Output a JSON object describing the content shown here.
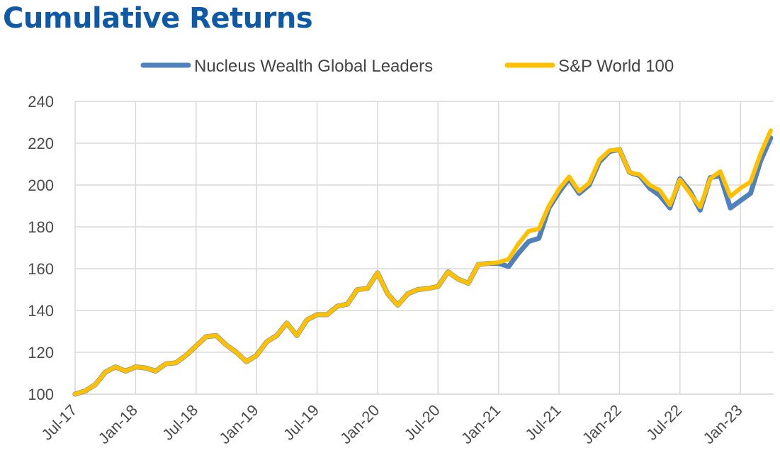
{
  "page_title": "Cumulative Returns",
  "chart_data": {
    "type": "line",
    "title": "Cumulative Returns",
    "xlabel": "",
    "ylabel": "",
    "ylim": [
      100,
      240
    ],
    "yticks": [
      100,
      120,
      140,
      160,
      180,
      200,
      220,
      240
    ],
    "xticks": [
      "Jul-17",
      "Jan-18",
      "Jul-18",
      "Jan-19",
      "Jul-19",
      "Jan-20",
      "Jul-20",
      "Jan-21",
      "Jul-21",
      "Jan-22",
      "Jul-22",
      "Jan-23"
    ],
    "x_start": "Jul-17",
    "x_frequency": "monthly",
    "grid": "both",
    "legend_position": "top",
    "series": [
      {
        "name": "Nucleus Wealth Global Leaders",
        "color": "#4f81bd",
        "values": [
          100,
          101.5,
          104.5,
          110.5,
          113,
          111,
          113,
          112.5,
          111,
          114.5,
          115,
          118.5,
          123,
          127.5,
          128,
          123.5,
          120,
          115.5,
          118.5,
          125,
          128,
          134,
          128,
          135.5,
          138,
          138,
          142,
          143,
          150,
          150.5,
          158,
          148,
          142.5,
          148,
          150,
          150.5,
          151.5,
          158.5,
          155,
          153,
          162,
          162.5,
          162.5,
          161,
          167.5,
          173,
          174.5,
          189,
          196.5,
          203,
          196,
          200,
          211,
          216,
          217,
          206,
          204.5,
          198.5,
          195,
          189,
          203,
          197,
          188,
          203.5,
          204.5,
          189,
          192.5,
          196,
          211.5,
          222.5
        ]
      },
      {
        "name": "S&P World 100",
        "color": "#ffc000",
        "values": [
          100,
          101.5,
          104.5,
          110.5,
          113,
          111,
          113,
          112.5,
          111,
          114.5,
          115,
          118.5,
          123,
          127.5,
          128,
          123.5,
          120,
          115.5,
          118.5,
          125,
          128,
          134,
          128,
          135.5,
          138,
          138,
          142,
          143,
          150,
          150.5,
          158,
          148,
          142.5,
          148,
          150,
          150.5,
          151.5,
          158.5,
          155,
          153,
          162,
          162.5,
          163,
          164.5,
          172,
          178,
          179,
          190,
          198,
          204,
          197,
          201,
          212,
          216.5,
          217,
          206,
          205,
          200,
          197.5,
          190.5,
          202.5,
          196,
          189.5,
          203,
          206.5,
          194.5,
          198.5,
          201.5,
          215,
          226
        ]
      }
    ]
  }
}
